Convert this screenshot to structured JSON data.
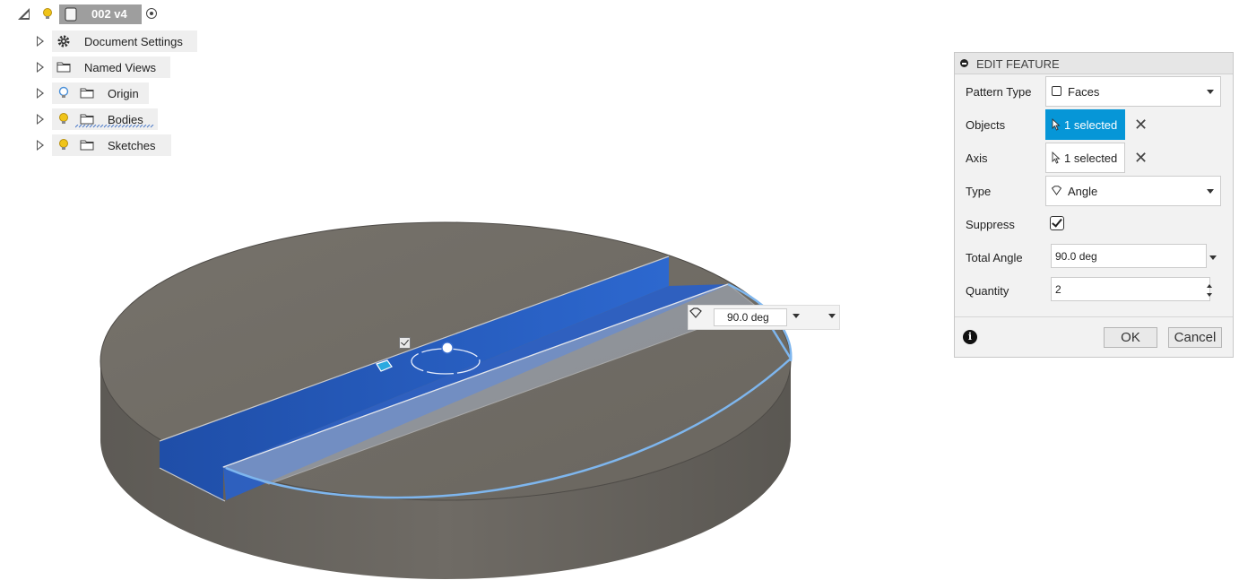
{
  "browser": {
    "root_label": "002 v4",
    "items": [
      {
        "label": "Document Settings",
        "icon": "gear-icon",
        "bulb": false
      },
      {
        "label": "Named Views",
        "icon": "folder-icon",
        "bulb": false
      },
      {
        "label": "Origin",
        "icon": "folder-icon",
        "bulb": true,
        "bulb_color": "#4a90d9"
      },
      {
        "label": "Bodies",
        "icon": "folder-icon",
        "bulb": true,
        "bulb_color": "#f0c419"
      },
      {
        "label": "Sketches",
        "icon": "folder-icon",
        "bulb": true,
        "bulb_color": "#f0c419"
      }
    ]
  },
  "viewport": {
    "angle_input": "90.0 deg"
  },
  "panel": {
    "title": "EDIT FEATURE",
    "pattern_type": {
      "label": "Pattern Type",
      "value": "Faces"
    },
    "objects": {
      "label": "Objects",
      "value": "1 selected"
    },
    "axis": {
      "label": "Axis",
      "value": "1 selected"
    },
    "type": {
      "label": "Type",
      "value": "Angle"
    },
    "suppress": {
      "label": "Suppress",
      "checked": true
    },
    "total_angle": {
      "label": "Total Angle",
      "value": "90.0 deg"
    },
    "quantity": {
      "label": "Quantity",
      "value": "2"
    },
    "ok_label": "OK",
    "cancel_label": "Cancel"
  },
  "colors": {
    "accent": "#0696d7",
    "selection_blue": "#2a62c6",
    "body_gray": "#6e6a63"
  }
}
